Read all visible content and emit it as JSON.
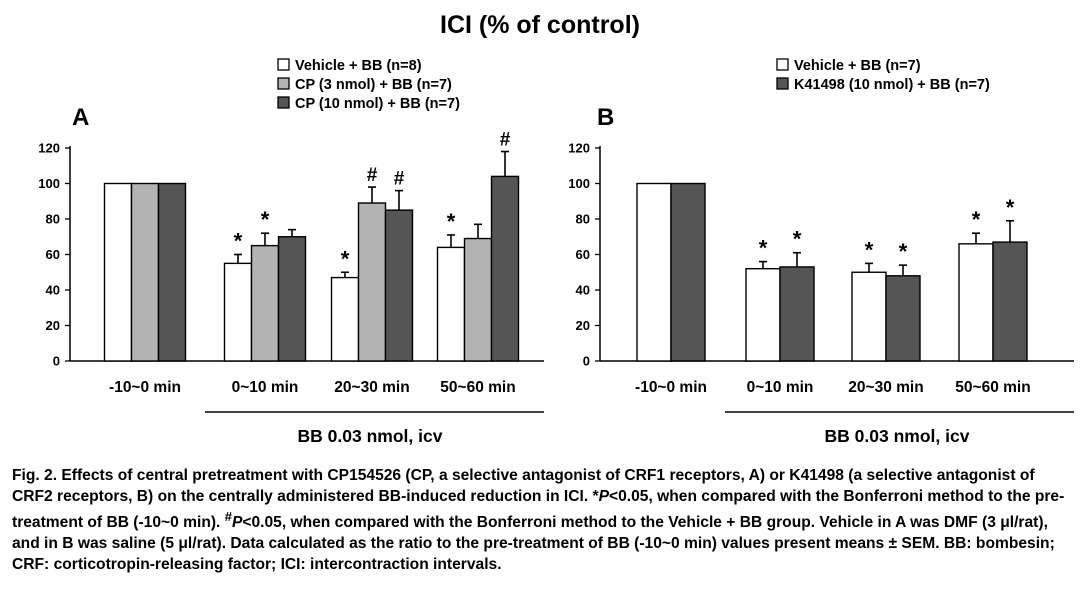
{
  "title": "ICI (% of control)",
  "colors": {
    "white_bar": "#ffffff",
    "light_gray_bar": "#b3b3b3",
    "dark_gray_bar": "#555555",
    "stroke": "#000000"
  },
  "chart_data": [
    {
      "type": "bar",
      "panel_label": "A",
      "categories": [
        "-10~0 min",
        "0~10 min",
        "20~30 min",
        "50~60 min"
      ],
      "ylim": [
        0,
        120
      ],
      "yticks": [
        0,
        20,
        40,
        60,
        80,
        100,
        120
      ],
      "grid": false,
      "legend": "top",
      "group_label": "BB 0.03 nmol, icv",
      "group_span": [
        "0~10 min",
        "50~60 min"
      ],
      "series": [
        {
          "name": "Vehicle + BB (n=8)",
          "color": "#ffffff",
          "values": [
            100,
            55,
            47,
            64
          ],
          "errors": [
            0,
            5,
            3,
            7
          ],
          "annotations": [
            "",
            "*",
            "*",
            "*"
          ]
        },
        {
          "name": "CP (3 nmol) + BB (n=7)",
          "color": "#b3b3b3",
          "values": [
            100,
            65,
            89,
            69
          ],
          "errors": [
            0,
            7,
            9,
            8
          ],
          "annotations": [
            "",
            "*",
            "#",
            ""
          ]
        },
        {
          "name": "CP (10 nmol) + BB (n=7)",
          "color": "#555555",
          "values": [
            100,
            70,
            85,
            104
          ],
          "errors": [
            0,
            4,
            11,
            14
          ],
          "annotations": [
            "",
            "",
            "#",
            "#"
          ]
        }
      ]
    },
    {
      "type": "bar",
      "panel_label": "B",
      "categories": [
        "-10~0 min",
        "0~10 min",
        "20~30 min",
        "50~60 min"
      ],
      "ylim": [
        0,
        120
      ],
      "yticks": [
        0,
        20,
        40,
        60,
        80,
        100,
        120
      ],
      "grid": false,
      "legend": "top",
      "group_label": "BB 0.03 nmol, icv",
      "group_span": [
        "0~10 min",
        "50~60 min"
      ],
      "series": [
        {
          "name": "Vehicle + BB (n=7)",
          "color": "#ffffff",
          "values": [
            100,
            52,
            50,
            66
          ],
          "errors": [
            0,
            4,
            5,
            6
          ],
          "annotations": [
            "",
            "*",
            "*",
            "*"
          ]
        },
        {
          "name": "K41498 (10 nmol) + BB (n=7)",
          "color": "#555555",
          "values": [
            100,
            53,
            48,
            67
          ],
          "errors": [
            0,
            8,
            6,
            12
          ],
          "annotations": [
            "",
            "*",
            "*",
            "*"
          ]
        }
      ]
    }
  ],
  "caption": {
    "part1": "Fig. 2. Effects of central pretreatment with CP154526 (CP, a selective antagonist of CRF1 receptors, A) or K41498 (a selective antagonist of CRF2 receptors, B) on the centrally administered BB-induced reduction in ICI.  *",
    "p1": "P",
    "part2": "<0.05, when compared with the Bonferroni method to the pre-treatment of BB (-10~0 min).  ",
    "hash": "#",
    "p2": "P",
    "part3": "<0.05, when compared with the Bonferroni method to the Vehicle + BB group.  Vehicle in A was DMF (3 μl/rat), and in B was saline (5 μl/rat).  Data calculated as the ratio to the pre-treatment of BB (-10~0 min) values present means ± SEM.  BB: bombesin; CRF: corticotropin-releasing factor; ICI: intercontraction intervals."
  }
}
